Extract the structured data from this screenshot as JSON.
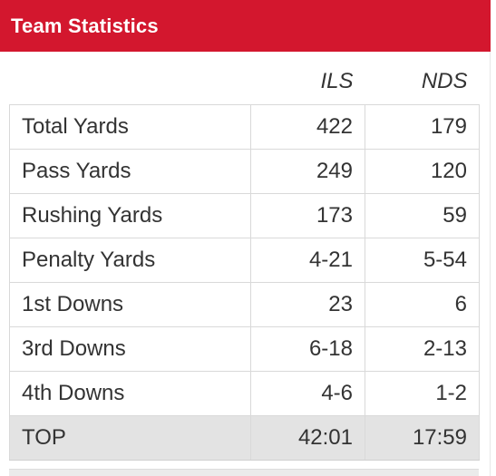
{
  "header": {
    "title": "Team Statistics"
  },
  "colors": {
    "header_bg": "#d3172e",
    "header_text": "#ffffff",
    "total_row_bg": "#e3e3e3"
  },
  "table": {
    "columns": [
      "",
      "ILS",
      "NDS"
    ],
    "rows": [
      {
        "label": "Total Yards",
        "ils": "422",
        "nds": "179"
      },
      {
        "label": "Pass Yards",
        "ils": "249",
        "nds": "120"
      },
      {
        "label": "Rushing Yards",
        "ils": "173",
        "nds": "59"
      },
      {
        "label": "Penalty Yards",
        "ils": "4-21",
        "nds": "5-54"
      },
      {
        "label": "1st Downs",
        "ils": "23",
        "nds": "6"
      },
      {
        "label": "3rd Downs",
        "ils": "6-18",
        "nds": "2-13"
      },
      {
        "label": "4th Downs",
        "ils": "4-6",
        "nds": "1-2"
      },
      {
        "label": "TOP",
        "ils": "42:01",
        "nds": "17:59"
      }
    ]
  }
}
